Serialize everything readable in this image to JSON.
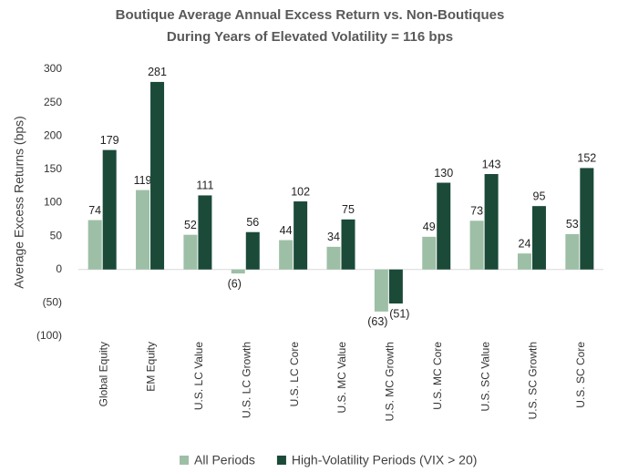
{
  "chart_data": {
    "type": "bar",
    "title": "Boutique Average Annual Excess Return vs. Non-Boutiques",
    "subtitle": "During Years of Elevated Volatility = 116 bps",
    "y_label": "Average Excess Returns (bps)",
    "categories": [
      "Global Equity",
      "EM Equity",
      "U.S. LC Value",
      "U.S. LC Growth",
      "U.S. LC Core",
      "U.S. MC Value",
      "U.S. MC Growth",
      "U.S. MC Core",
      "U.S. SC Value",
      "U.S. SC Growth",
      "U.S. SC Core"
    ],
    "series": [
      {
        "name": "All Periods",
        "color": "#9dbfa6",
        "values": [
          74,
          119,
          52,
          -6,
          44,
          34,
          -63,
          49,
          73,
          24,
          53
        ],
        "value_labels": [
          "74",
          "119",
          "52",
          "(6)",
          "44",
          "34",
          "(63)",
          "49",
          "73",
          "24",
          "53"
        ]
      },
      {
        "name": "High-Volatility Periods (VIX > 20)",
        "color": "#1b4a39",
        "values": [
          179,
          281,
          111,
          56,
          102,
          75,
          -51,
          130,
          143,
          95,
          152
        ],
        "value_labels": [
          "179",
          "281",
          "111",
          "56",
          "102",
          "75",
          "(51)",
          "130",
          "143",
          "95",
          "152"
        ]
      }
    ],
    "ylim": [
      -100,
      300
    ],
    "yticks": [
      {
        "value": -100,
        "label": "(100)"
      },
      {
        "value": -50,
        "label": "(50)"
      },
      0,
      50,
      100,
      150,
      200,
      250,
      300
    ],
    "grid": false,
    "legend": "bottom"
  }
}
